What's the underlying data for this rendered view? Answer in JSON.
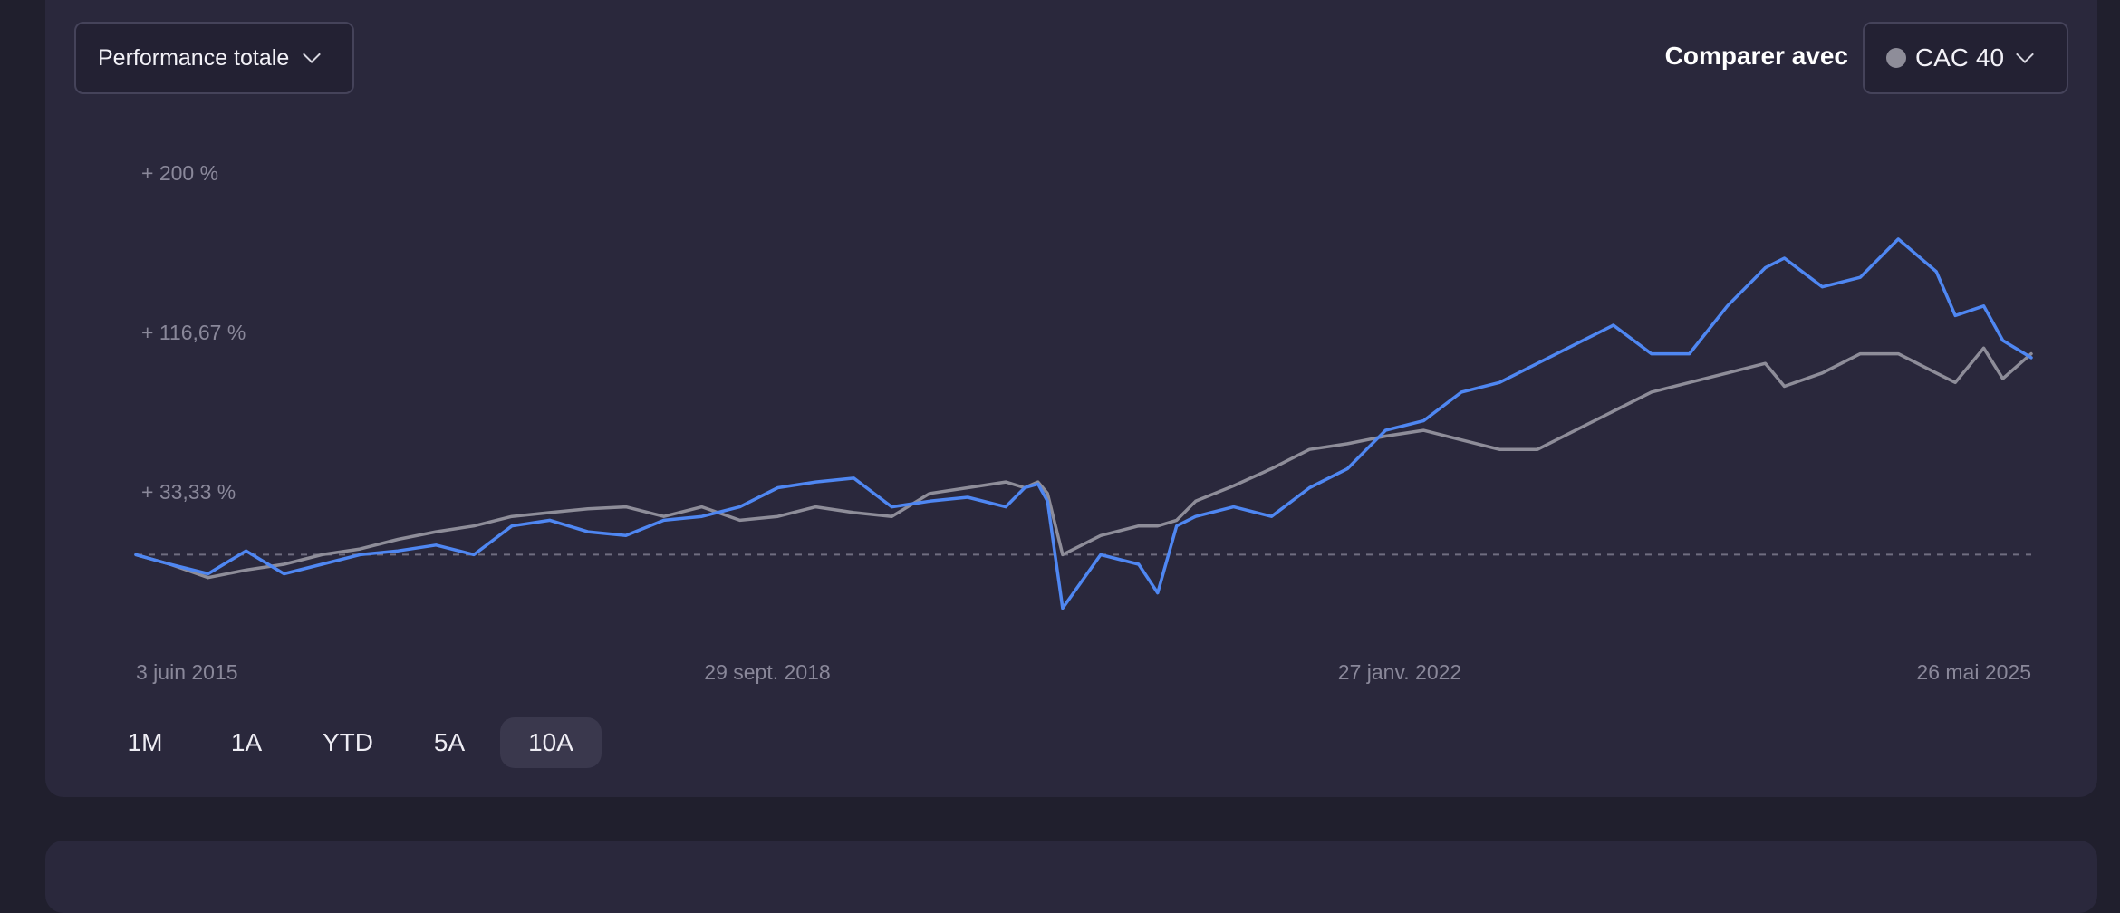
{
  "metric_dropdown": {
    "label": "Performance totale"
  },
  "compare": {
    "label": "Comparer avec",
    "selected": "CAC 40"
  },
  "range_buttons": [
    {
      "label": "1M",
      "active": false
    },
    {
      "label": "1A",
      "active": false
    },
    {
      "label": "YTD",
      "active": false
    },
    {
      "label": "5A",
      "active": false
    },
    {
      "label": "10A",
      "active": true
    }
  ],
  "colors": {
    "fund": "#4f87f2",
    "index": "#8e8d99",
    "baseline": "#6f6d80"
  },
  "chart_data": {
    "type": "line",
    "y_ticks": [
      "+ 200 %",
      "+ 116,67 %",
      "+ 33,33 %"
    ],
    "x_ticks": [
      "3 juin 2015",
      "29 sept. 2018",
      "27 janv. 2022",
      "26 mai 2025"
    ],
    "ylim": [
      -50,
      200
    ],
    "xlim": [
      2015.42,
      2025.4
    ],
    "grid": false,
    "baseline": 0,
    "series": [
      {
        "color": "#4f87f2",
        "x": [
          2015.42,
          2015.6,
          2015.8,
          2016.0,
          2016.2,
          2016.4,
          2016.6,
          2016.8,
          2017.0,
          2017.2,
          2017.4,
          2017.6,
          2017.8,
          2018.0,
          2018.2,
          2018.4,
          2018.6,
          2018.8,
          2019.0,
          2019.2,
          2019.4,
          2019.6,
          2019.8,
          2020.0,
          2020.1,
          2020.17,
          2020.22,
          2020.3,
          2020.5,
          2020.7,
          2020.8,
          2020.9,
          2021.0,
          2021.2,
          2021.4,
          2021.6,
          2021.8,
          2021.9,
          2022.0,
          2022.2,
          2022.4,
          2022.6,
          2022.8,
          2023.0,
          2023.2,
          2023.4,
          2023.6,
          2023.8,
          2024.0,
          2024.1,
          2024.3,
          2024.5,
          2024.7,
          2024.9,
          2025.0,
          2025.15,
          2025.25,
          2025.4
        ],
        "y": [
          0,
          -5,
          -10,
          2,
          -10,
          -5,
          0,
          2,
          5,
          0,
          15,
          18,
          12,
          10,
          18,
          20,
          25,
          35,
          38,
          40,
          25,
          28,
          30,
          25,
          35,
          37,
          28,
          -28,
          0,
          -5,
          -20,
          15,
          20,
          25,
          20,
          35,
          45,
          55,
          65,
          70,
          85,
          90,
          100,
          110,
          120,
          105,
          105,
          130,
          150,
          155,
          140,
          145,
          165,
          148,
          125,
          130,
          112,
          103
        ]
      },
      {
        "color": "#8e8d99",
        "x": [
          2015.42,
          2015.6,
          2015.8,
          2016.0,
          2016.2,
          2016.4,
          2016.6,
          2016.8,
          2017.0,
          2017.2,
          2017.4,
          2017.6,
          2017.8,
          2018.0,
          2018.2,
          2018.4,
          2018.6,
          2018.8,
          2019.0,
          2019.2,
          2019.4,
          2019.6,
          2019.8,
          2020.0,
          2020.1,
          2020.17,
          2020.22,
          2020.3,
          2020.5,
          2020.7,
          2020.8,
          2020.9,
          2021.0,
          2021.2,
          2021.4,
          2021.6,
          2021.8,
          2021.9,
          2022.0,
          2022.2,
          2022.4,
          2022.6,
          2022.8,
          2023.0,
          2023.2,
          2023.4,
          2023.6,
          2023.8,
          2024.0,
          2024.1,
          2024.3,
          2024.5,
          2024.7,
          2024.9,
          2025.0,
          2025.15,
          2025.25,
          2025.4
        ],
        "y": [
          0,
          -5,
          -12,
          -8,
          -5,
          0,
          3,
          8,
          12,
          15,
          20,
          22,
          24,
          25,
          20,
          25,
          18,
          20,
          25,
          22,
          20,
          32,
          35,
          38,
          35,
          38,
          32,
          0,
          10,
          15,
          15,
          18,
          28,
          36,
          45,
          55,
          58,
          60,
          62,
          65,
          60,
          55,
          55,
          65,
          75,
          85,
          90,
          95,
          100,
          88,
          95,
          105,
          105,
          95,
          90,
          108,
          92,
          105
        ]
      }
    ]
  }
}
